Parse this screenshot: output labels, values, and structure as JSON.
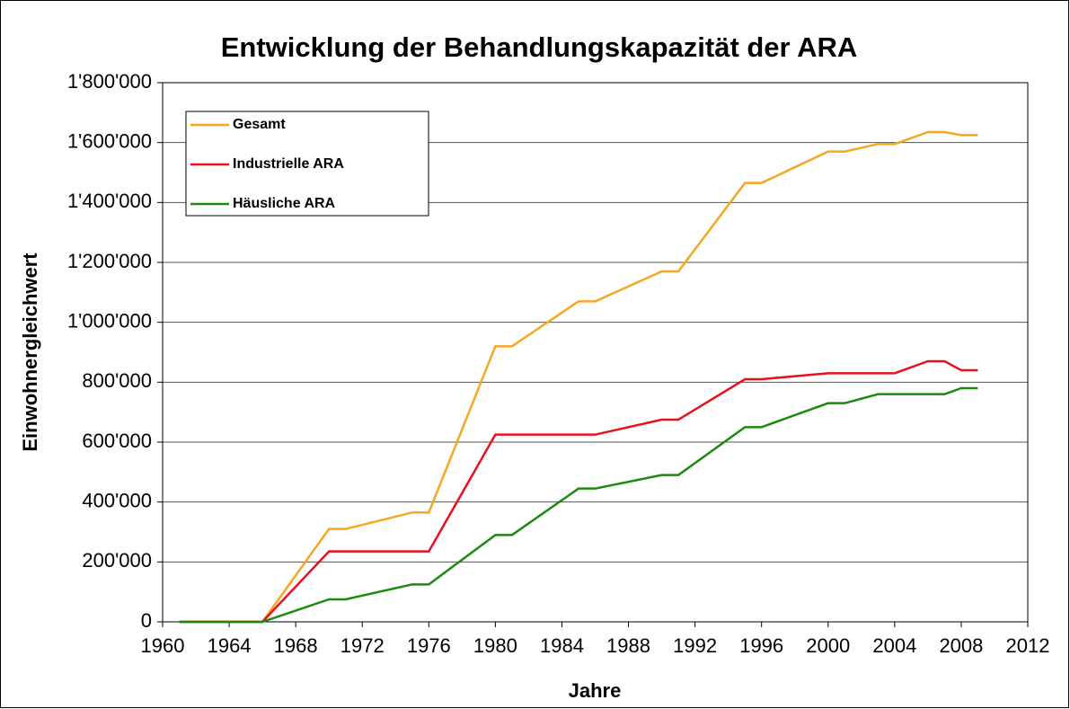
{
  "chart_data": {
    "type": "line",
    "title": "Entwicklung der Behandlungskapazität der ARA",
    "xlabel": "Jahre",
    "ylabel": "Einwohnergleichwert",
    "x": [
      1961,
      1966,
      1970,
      1971,
      1975,
      1976,
      1980,
      1981,
      1985,
      1986,
      1990,
      1991,
      1995,
      1996,
      2000,
      2001,
      2003,
      2004,
      2006,
      2007,
      2008,
      2009
    ],
    "series": [
      {
        "name": "Gesamt",
        "color": "#f5a623",
        "values": [
          0,
          0,
          310000,
          310000,
          365000,
          365000,
          920000,
          920000,
          1070000,
          1070000,
          1170000,
          1170000,
          1465000,
          1465000,
          1570000,
          1570000,
          1595000,
          1595000,
          1635000,
          1635000,
          1625000,
          1625000
        ]
      },
      {
        "name": "Industrielle ARA",
        "color": "#e8101a",
        "values": [
          0,
          0,
          235000,
          235000,
          235000,
          235000,
          625000,
          625000,
          625000,
          625000,
          675000,
          675000,
          810000,
          810000,
          830000,
          830000,
          830000,
          830000,
          870000,
          870000,
          840000,
          840000
        ]
      },
      {
        "name": "Häusliche ARA",
        "color": "#1a8a10",
        "values": [
          0,
          0,
          75000,
          75000,
          125000,
          125000,
          290000,
          290000,
          445000,
          445000,
          490000,
          490000,
          650000,
          650000,
          730000,
          730000,
          760000,
          760000,
          760000,
          760000,
          780000,
          780000
        ]
      }
    ],
    "xlim": [
      1960,
      2012
    ],
    "xticks": [
      1960,
      1964,
      1968,
      1972,
      1976,
      1980,
      1984,
      1988,
      1992,
      1996,
      2000,
      2004,
      2008,
      2012
    ],
    "ylim": [
      0,
      1800000
    ],
    "yticks": [
      0,
      {
        "value": 200000,
        "label": "200'000"
      },
      {
        "value": 400000,
        "label": "400'000"
      },
      {
        "value": 600000,
        "label": "600'000"
      },
      {
        "value": 800000,
        "label": "800'000"
      },
      {
        "value": 1000000,
        "label": "1'000'000"
      },
      {
        "value": 1200000,
        "label": "1'200'000"
      },
      {
        "value": 1400000,
        "label": "1'400'000"
      },
      {
        "value": 1600000,
        "label": "1'600'000"
      },
      {
        "value": 1800000,
        "label": "1'800'000"
      }
    ],
    "grid": true,
    "legend": "upper left"
  }
}
